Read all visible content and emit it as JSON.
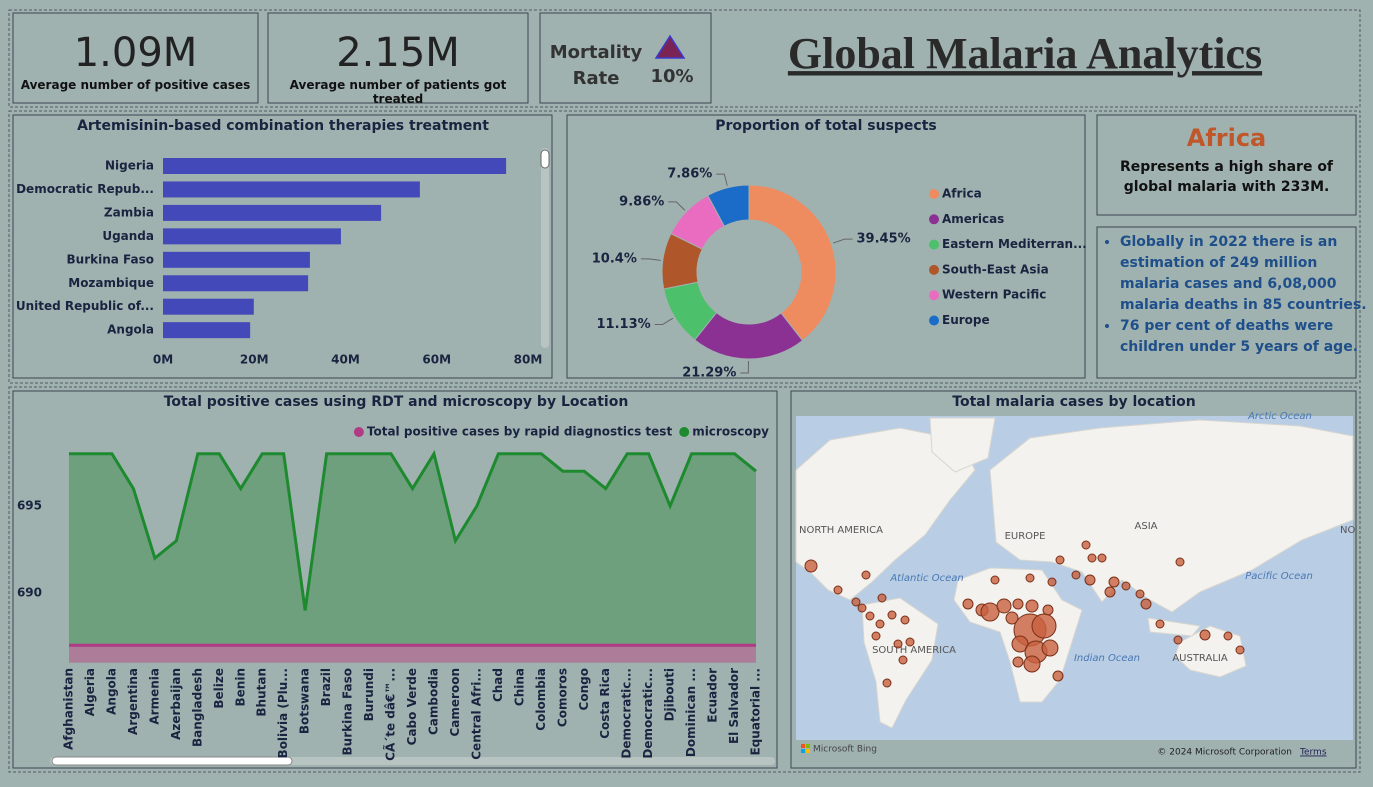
{
  "header": {
    "title": "Global Malaria Analytics"
  },
  "kpis": [
    {
      "value": "1.09M",
      "label": "Average number of positive cases"
    },
    {
      "value": "2.15M",
      "label": "Average number of patients got treated"
    }
  ],
  "mortality": {
    "label": "Mortality Rate",
    "value": "10%"
  },
  "insight": {
    "region": "Africa",
    "text": "Represents a high share of global malaria with 233M.",
    "bullets": [
      "Globally in 2022 there is an estimation of 249 million malaria cases and 6,08,000 malaria deaths in 85 countries.",
      "76 per cent of deaths were children under 5 years of age."
    ]
  },
  "map": {
    "title": "Total malaria cases by location",
    "labels": [
      "Arctic Ocean",
      "NORTH AMERICA",
      "ASIA",
      "NO",
      "EUROPE",
      "Atlantic Ocean",
      "Pacific Ocean",
      "SOUTH AMERICA",
      "Indian Ocean",
      "AUSTRALIA"
    ],
    "attribution": "Microsoft Bing",
    "copyright": "© 2024 Microsoft Corporation",
    "terms": "Terms"
  },
  "chart_data": [
    {
      "type": "bar",
      "orientation": "horizontal",
      "title": "Artemisinin-based combination therapies treatment",
      "categories": [
        "Nigeria",
        "Democratic Repub...",
        "Zambia",
        "Uganda",
        "Burkina Faso",
        "Mozambique",
        "United Republic of...",
        "Angola"
      ],
      "values": [
        75.2,
        56.3,
        47.8,
        39.0,
        32.2,
        31.8,
        19.9,
        19.1
      ],
      "color": "#4349b8",
      "xlim": [
        0,
        80
      ],
      "xticks": [
        {
          "value": 0,
          "label": "0M"
        },
        {
          "value": 20,
          "label": "20M"
        },
        {
          "value": 40,
          "label": "40M"
        },
        {
          "value": 60,
          "label": "60M"
        },
        {
          "value": 80,
          "label": "80M"
        }
      ],
      "grid": false
    },
    {
      "type": "pie",
      "title": "Proportion of total suspects",
      "categories": [
        "Africa",
        "Americas",
        "Eastern Mediterran...",
        "South-East Asia",
        "Western Pacific",
        "Europe"
      ],
      "values": [
        39.45,
        21.29,
        11.13,
        10.4,
        9.86,
        7.86
      ],
      "value_labels": [
        "39.45%",
        "21.29%",
        "11.13%",
        "10.4%",
        "9.86%",
        "7.86%"
      ],
      "colors": [
        "#ee8c5f",
        "#8b3194",
        "#4cc06a",
        "#b0562b",
        "#ea6cc0",
        "#1a6cc8"
      ]
    },
    {
      "type": "area",
      "title": "Total positive cases using RDT and microscopy by Location",
      "categories": [
        "Afghanistan",
        "Algeria",
        "Angola",
        "Argentina",
        "Armenia",
        "Azerbaijan",
        "Bangladesh",
        "Belize",
        "Benin",
        "Bhutan",
        "Bolivia (Plu...",
        "Botswana",
        "Brazil",
        "Burkina Faso",
        "Burundi",
        "CÃ´te dâ€™...",
        "Cabo Verde",
        "Cambodia",
        "Cameroon",
        "Central Afri...",
        "Chad",
        "China",
        "Colombia",
        "Comoros",
        "Congo",
        "Costa Rica",
        "Democratic...",
        "Democratic...",
        "Djibouti",
        "Dominican ...",
        "Ecuador",
        "El Salvador",
        "Equatorial ..."
      ],
      "series": [
        {
          "name": "Total positive cases by rapid diagnostics test",
          "color": "#b03a84",
          "values": [
            687,
            687,
            687,
            687,
            687,
            687,
            687,
            687,
            687,
            687,
            687,
            687,
            687,
            687,
            687,
            687,
            687,
            687,
            687,
            687,
            687,
            687,
            687,
            687,
            687,
            687,
            687,
            687,
            687,
            687,
            687,
            687,
            687
          ]
        },
        {
          "name": "microscopy",
          "color": "#1e8a30",
          "values": [
            698,
            698,
            698,
            696,
            692,
            693,
            698,
            698,
            696,
            698,
            698,
            689,
            698,
            698,
            698,
            698,
            696,
            698,
            693,
            695,
            698,
            698,
            698,
            697,
            697,
            696,
            698,
            698,
            695,
            698,
            698,
            698,
            697
          ]
        }
      ],
      "ylim": [
        686,
        699
      ],
      "yticks": [
        690,
        695
      ],
      "grid": false
    }
  ]
}
